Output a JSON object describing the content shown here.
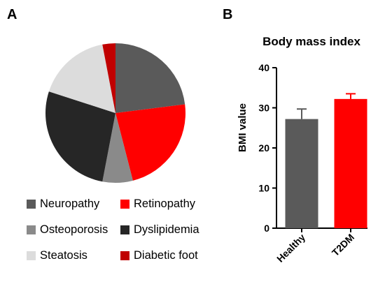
{
  "panels": {
    "a_label": "A",
    "b_label": "B"
  },
  "chart_data": [
    {
      "type": "pie",
      "labels": [
        "Neuropathy",
        "Retinopathy",
        "Osteoporosis",
        "Dyslipidemia",
        "Steatosis",
        "Diabetic foot"
      ],
      "values": [
        23,
        23,
        7,
        27,
        17,
        3
      ],
      "colors": [
        "#5a5a5a",
        "#ff0000",
        "#8a8a8a",
        "#262626",
        "#dcdcdc",
        "#c00000"
      ],
      "legend": "bottom"
    },
    {
      "type": "bar",
      "title": "Body mass index",
      "ylabel": "BMI value",
      "categories": [
        "Healthy",
        "T2DM"
      ],
      "values": [
        27.2,
        32.2
      ],
      "errors": [
        2.5,
        1.3
      ],
      "colors": [
        "#5a5a5a",
        "#ff0000"
      ],
      "ylim": [
        0,
        40
      ],
      "yticks": [
        "0",
        "10",
        "20",
        "30",
        "40"
      ]
    }
  ]
}
